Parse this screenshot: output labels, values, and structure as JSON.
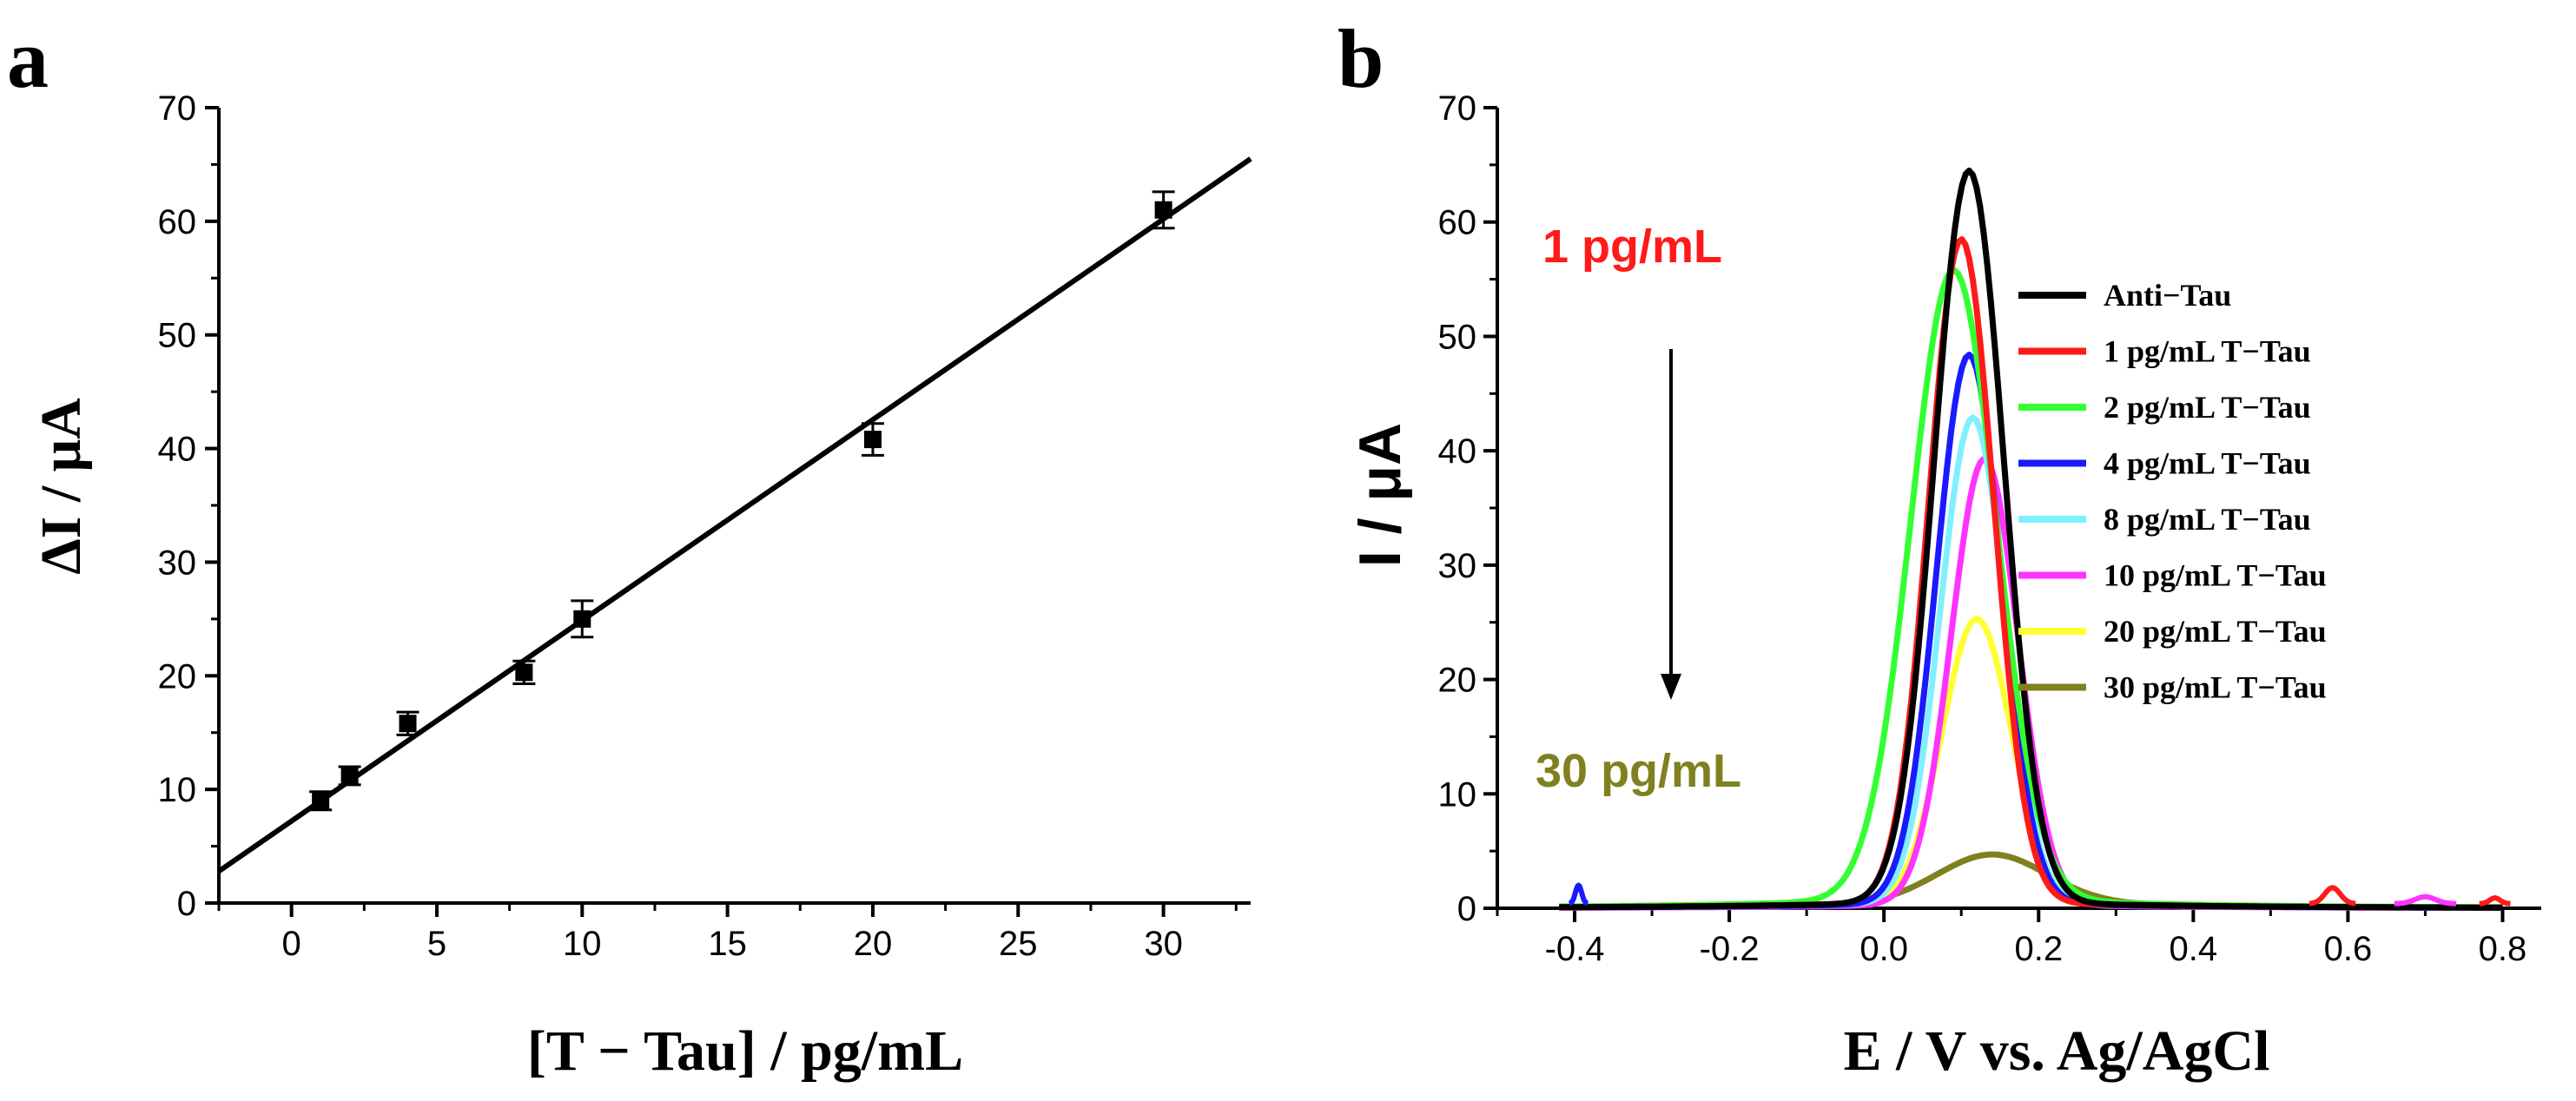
{
  "chart_data": [
    {
      "type": "scatter",
      "panel_label": "a",
      "xlabel": "[T − Tau] / pg/mL",
      "ylabel": "ΔI / μA",
      "xlim": [
        -2.5,
        33
      ],
      "ylim": [
        0,
        70
      ],
      "x_ticks": [
        "0",
        "5",
        "10",
        "15",
        "20",
        "25",
        "30"
      ],
      "y_ticks": [
        "0",
        "10",
        "20",
        "30",
        "40",
        "50",
        "60",
        "70"
      ],
      "points": [
        {
          "x": 1,
          "y": 9.0,
          "err": 0.8
        },
        {
          "x": 2,
          "y": 11.2,
          "err": 0.8
        },
        {
          "x": 4,
          "y": 15.8,
          "err": 1.0
        },
        {
          "x": 8,
          "y": 20.3,
          "err": 1.0
        },
        {
          "x": 10,
          "y": 25.0,
          "err": 1.6
        },
        {
          "x": 20,
          "y": 40.8,
          "err": 1.4
        },
        {
          "x": 30,
          "y": 61.0,
          "err": 1.6
        }
      ],
      "fit_line": {
        "x": [
          -2.5,
          33
        ],
        "y": [
          2.8,
          65.5
        ]
      }
    },
    {
      "type": "line",
      "panel_label": "b",
      "xlabel": "E / V vs. Ag/AgCl",
      "ylabel": "I / μA",
      "xlim": [
        -0.5,
        0.85
      ],
      "ylim": [
        0,
        70
      ],
      "x_ticks": [
        "-0.4",
        "-0.2",
        "0.0",
        "0.2",
        "0.4",
        "0.6",
        "0.8"
      ],
      "y_ticks": [
        "0",
        "10",
        "20",
        "30",
        "40",
        "50",
        "60",
        "70"
      ],
      "annotation_top": "1 pg/mL",
      "annotation_bottom": "30 pg/mL",
      "series": [
        {
          "name": "Anti−Tau",
          "color": "#000000",
          "peak": 64,
          "center": 0.11,
          "sigma": 0.045,
          "base": 0.5
        },
        {
          "name": "1 pg/mL T−Tau",
          "color": "#ff1a1a",
          "peak": 58,
          "center": 0.1,
          "sigma": 0.042,
          "base": 0.5
        },
        {
          "name": "2 pg/mL T−Tau",
          "color": "#33ff33",
          "peak": 55,
          "center": 0.09,
          "sigma": 0.055,
          "base": 0.8
        },
        {
          "name": "4 pg/mL T−Tau",
          "color": "#1a1aff",
          "peak": 48,
          "center": 0.11,
          "sigma": 0.042,
          "base": 0.4
        },
        {
          "name": "8 pg/mL T−Tau",
          "color": "#80f0ff",
          "peak": 42.5,
          "center": 0.115,
          "sigma": 0.042,
          "base": 0.4
        },
        {
          "name": "10 pg/mL T−Tau",
          "color": "#ff33ff",
          "peak": 39,
          "center": 0.13,
          "sigma": 0.043,
          "base": 0.3
        },
        {
          "name": "20 pg/mL T−Tau",
          "color": "#ffff33",
          "peak": 25,
          "center": 0.12,
          "sigma": 0.045,
          "base": 0.3
        },
        {
          "name": "30 pg/mL T−Tau",
          "color": "#808020",
          "peak": 4.2,
          "center": 0.14,
          "sigma": 0.07,
          "base": 0.5
        }
      ]
    }
  ]
}
